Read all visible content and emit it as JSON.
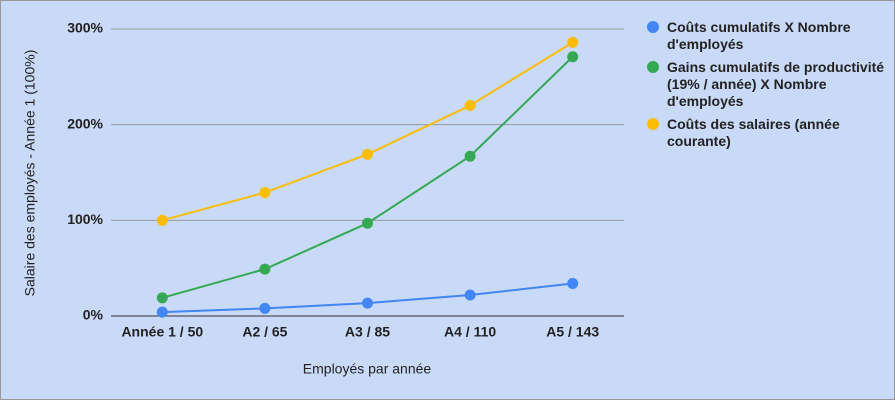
{
  "chart_data": {
    "type": "line",
    "x_label": "Employés par année",
    "y_label": "Salaire des employés - Année 1 (100%)",
    "categories": [
      "Année 1 / 50",
      "A2 / 65",
      "A3 / 85",
      "A4 / 110",
      "A5 / 143"
    ],
    "series": [
      {
        "name": "Coûts cumulatifs X Nombre d'employés",
        "color": "#4285f4",
        "values": [
          4,
          8,
          13.5,
          22,
          34
        ]
      },
      {
        "name": "Gains cumulatifs de productivité (19% / année) X Nombre d'employés",
        "color": "#34a853",
        "values": [
          19,
          49,
          97,
          167,
          271
        ]
      },
      {
        "name": "Coûts des salaires (année courante)",
        "color": "#fbbc04",
        "values": [
          100,
          129,
          169,
          220,
          286
        ]
      }
    ],
    "ylim": [
      0,
      300
    ],
    "yticks": [
      {
        "value": 0,
        "label": "0%"
      },
      {
        "value": 100,
        "label": "100%"
      },
      {
        "value": 200,
        "label": "200%"
      },
      {
        "value": 300,
        "label": "300%"
      }
    ],
    "grid": true,
    "legend": "right"
  }
}
